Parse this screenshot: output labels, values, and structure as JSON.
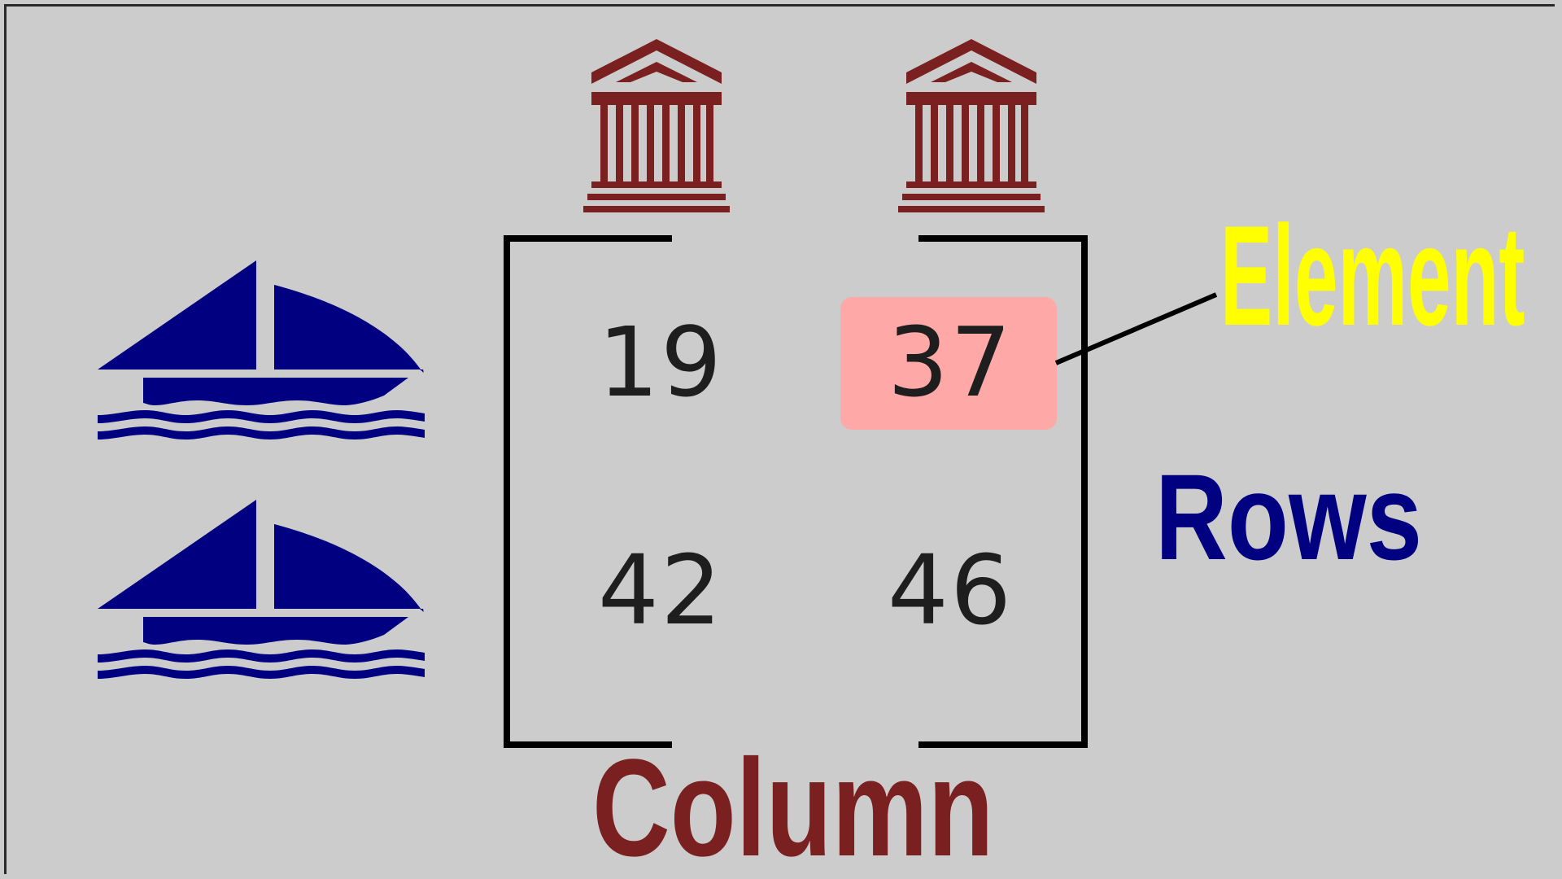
{
  "matrix": {
    "rows": [
      [
        "19",
        "37"
      ],
      [
        "42",
        "46"
      ]
    ]
  },
  "labels": {
    "rows": "Rows",
    "column": "Column",
    "element": "Element"
  },
  "icons": {
    "row_icon": "sailboat-icon",
    "column_icon": "bank-building-icon"
  },
  "colors": {
    "background": "#cccccc",
    "row_color": "#000080",
    "column_color": "#7a2020",
    "element_label_color": "#ffff00",
    "highlight_fill": "#ffa8a8",
    "bracket_color": "#000000"
  }
}
